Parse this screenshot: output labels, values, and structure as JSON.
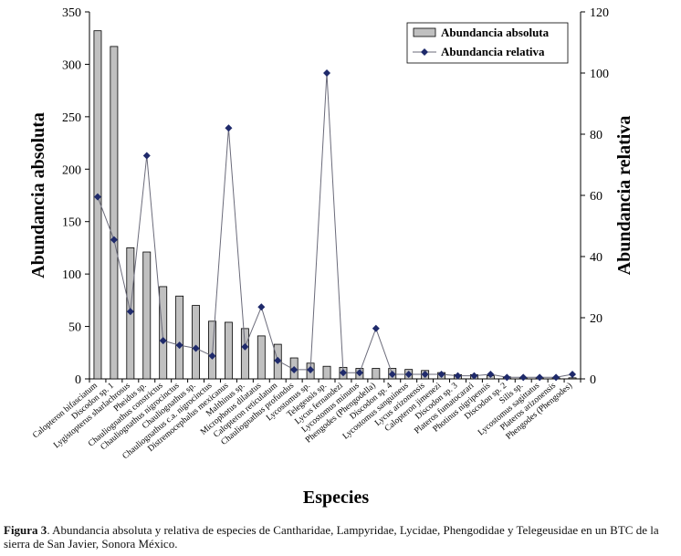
{
  "chart_data": {
    "type": "bar+line",
    "xlabel": "Especies",
    "ylabel_left": "Abundancia absoluta",
    "ylabel_right": "Abundancia relativa",
    "ylim_left": [
      0,
      350
    ],
    "yticks_left": [
      0,
      50,
      100,
      150,
      200,
      250,
      300,
      350
    ],
    "ylim_right": [
      0,
      120
    ],
    "yticks_right": [
      0,
      20,
      40,
      60,
      80,
      100,
      120
    ],
    "legend": {
      "position": "top-right",
      "bar_label": "Abundancia absoluta",
      "line_label": "Abundancia relativa"
    },
    "categories": [
      "Calopteron bifasciatum",
      "Discodon sp. 1",
      "Lygistopterus sharlachrosus",
      "Pheidus sp.",
      "Chauliognathus constrictus",
      "Chauliognathus nigrocinctus",
      "Chauliognathus sp.",
      "Chauliognathus c.a. nigrocinctus",
      "Distremocephalus mexicanus",
      "Malthinus sp.",
      "Microphotus dilatatus",
      "Calopteron reticulatum",
      "Chauliognathus profundus",
      "Lycostomus sp.",
      "Telegeusis sp.",
      "Lycus fernandezi",
      "Lycostomus minutus",
      "Phengodes (Phengodella)",
      "Discodon sp. 4",
      "Lycostomus sanguineus",
      "Lycus arizonensis",
      "Calopteron jimenezi",
      "Discodon sp. 3",
      "Plateros fumatocarari",
      "Photinus nigripennis",
      "Discodon sp. 2",
      "Silis sp.",
      "Lycostomus sagittatus",
      "Plateros arizonensis",
      "Phengodes (Phengodes)"
    ],
    "series": [
      {
        "name": "Abundancia absoluta",
        "axis": "left",
        "kind": "bar",
        "values": [
          332,
          317,
          125,
          121,
          88,
          79,
          70,
          55,
          54,
          48,
          41,
          33,
          20,
          15,
          12,
          11,
          10,
          10,
          10,
          9,
          8,
          6,
          4,
          4,
          3,
          2,
          1,
          1,
          1,
          1
        ]
      },
      {
        "name": "Abundancia relativa",
        "axis": "right",
        "kind": "line",
        "values": [
          59.5,
          45.5,
          22,
          73,
          12.5,
          11,
          10,
          7.5,
          82,
          10.5,
          23.5,
          6,
          3,
          3,
          100,
          2,
          2,
          16.5,
          1.5,
          1.5,
          1.5,
          1.5,
          1,
          1,
          1.5,
          0.5,
          0.5,
          0.5,
          0.5,
          1.5
        ]
      }
    ]
  },
  "caption": {
    "label": "Figura 3",
    "text": ". Abundancia absoluta y relativa de especies de Cantharidae, Lampyridae, Lycidae, Phengodidae y Telegeusidae en un BTC de la sierra de San Javier, Sonora México."
  }
}
